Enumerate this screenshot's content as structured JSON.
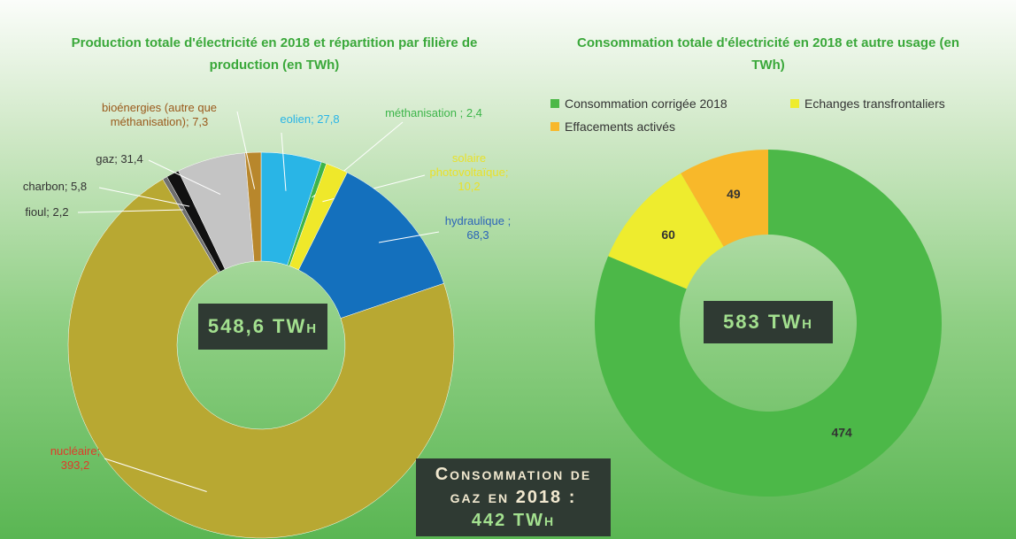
{
  "chart_data": [
    {
      "type": "donut",
      "title": "Production totale d'électricité en 2018 et répartition par filière de production (en TWh)",
      "center_label": "548,6 TWh",
      "values": [
        27.8,
        2.4,
        10.2,
        68.3,
        393.2,
        2.2,
        5.8,
        31.4,
        7.3
      ],
      "value_labels": [
        "eolien; 27,8",
        "méthanisation ; 2,4",
        "solaire photovoltaïque; 10,2",
        "hydraulique ; 68,3",
        "nucléaire; 393,2",
        "fioul; 2,2",
        "charbon; 5,8",
        "gaz; 31,4",
        "bioénergies (autre que méthanisation); 7,3"
      ],
      "colors": [
        "#29b5e6",
        "#3db54a",
        "#efe82a",
        "#1470bd",
        "#b8a832",
        "#6f6f6f",
        "#111111",
        "#c4c4c4",
        "#b8872c"
      ],
      "label_colors": [
        "#29b5e6",
        "#3db54a",
        "#e9e12a",
        "#2b63b8",
        "#e03a2a",
        "#333333",
        "#333333",
        "#333333",
        "#9a5a1c"
      ]
    },
    {
      "type": "donut",
      "title": "Consommation totale d'électricité en 2018 et autre usage (en TWh)",
      "center_label": "583 TWh",
      "series": [
        {
          "name": "Consommation corrigée 2018",
          "color": "#4cb848",
          "values": [
            474
          ]
        },
        {
          "name": "Echanges transfrontaliers",
          "color": "#eeec2e",
          "values": [
            60
          ]
        },
        {
          "name": "Effacements activés",
          "color": "#f8b82a",
          "values": [
            49
          ]
        }
      ]
    }
  ],
  "annotation": {
    "text": "Consommation de gaz en 2018 :",
    "value": "442 TWh"
  }
}
